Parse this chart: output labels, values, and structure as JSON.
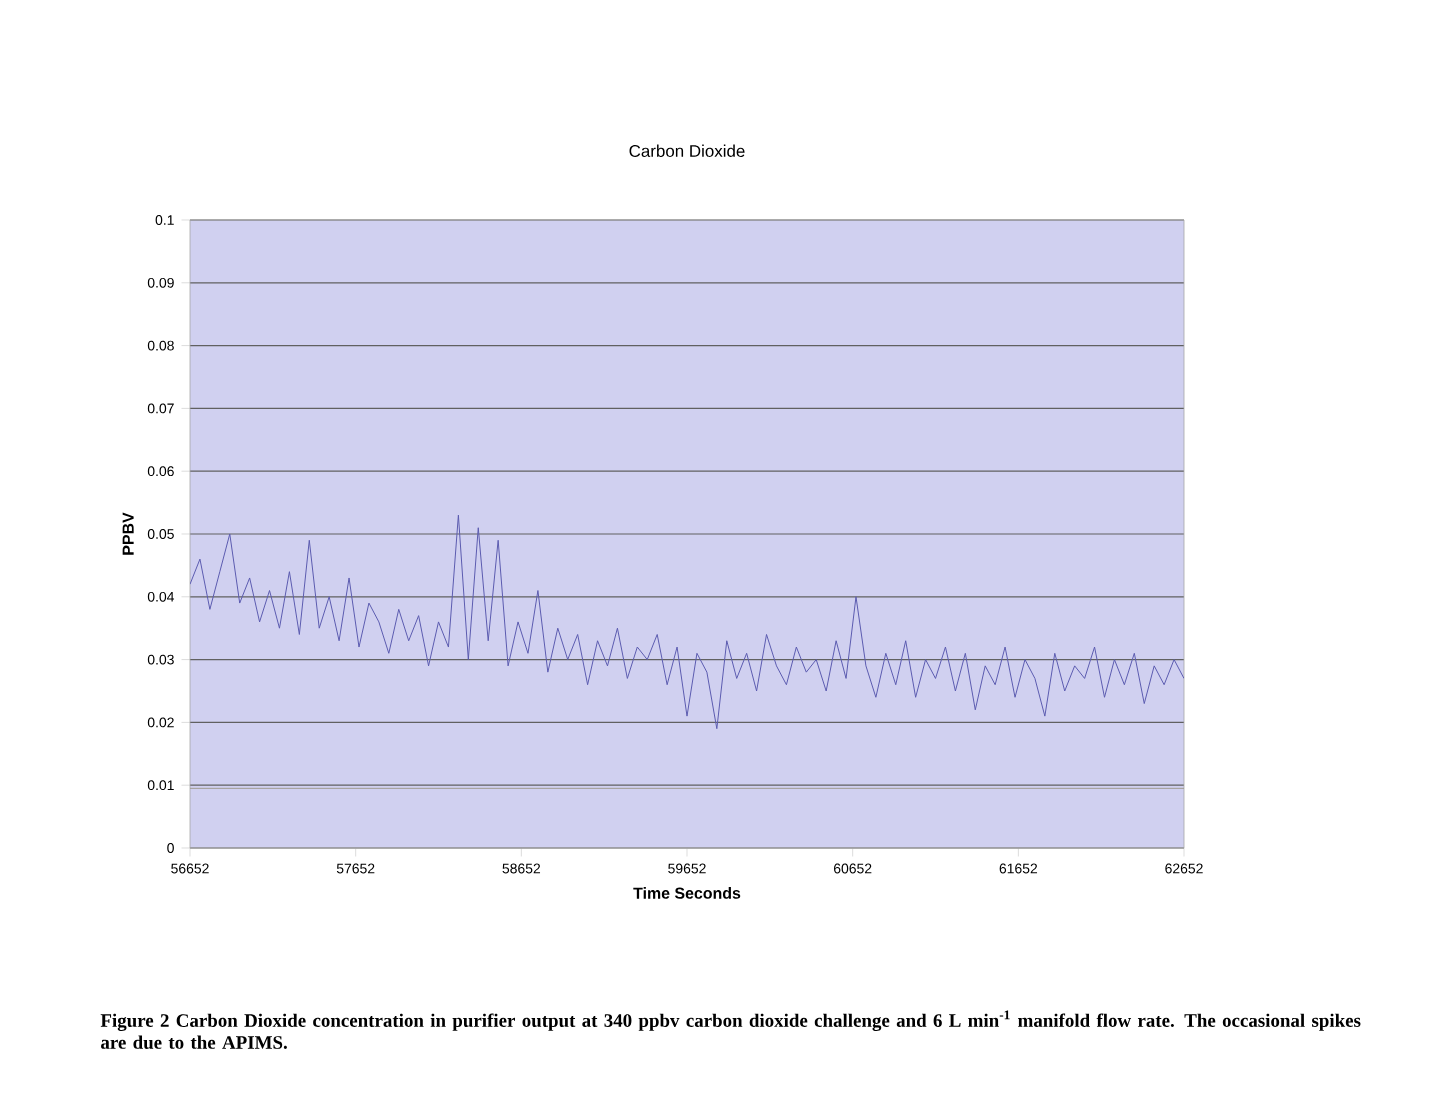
{
  "chart_data": {
    "type": "line",
    "title": "Carbon Dioxide",
    "xlabel": "Time Seconds",
    "ylabel": "PPBV",
    "annotations": [
      "Figure 2  Carbon Dioxide concentration in purifier output at 340 ppbv carbon dioxide challenge and  6 L min$^{-1}$ manifold flow rate.  The occasional spikes are due to the APIMS."
    ],
    "xlim": [
      56652,
      62652
    ],
    "xticks": [
      56652,
      57652,
      58652,
      59652,
      60652,
      61652,
      62652
    ],
    "ylim": [
      0,
      0.1
    ],
    "yticks": [
      0,
      0.01,
      0.02,
      0.03,
      0.04,
      0.05,
      0.06,
      0.07,
      0.08,
      0.09,
      0.1
    ],
    "grid": "y",
    "marker": "none",
    "line_style": "solid",
    "series": [
      {
        "color": "#5b5bb0",
        "x": [
          56652,
          56712,
          56772,
          56832,
          56892,
          56952,
          57012,
          57072,
          57132,
          57192,
          57252,
          57312,
          57372,
          57432,
          57492,
          57552,
          57612,
          57672,
          57732,
          57792,
          57852,
          57912,
          57972,
          58032,
          58092,
          58152,
          58212,
          58272,
          58332,
          58392,
          58452,
          58512,
          58572,
          58632,
          58692,
          58752,
          58812,
          58872,
          58932,
          58992,
          59052,
          59112,
          59172,
          59232,
          59292,
          59352,
          59412,
          59472,
          59532,
          59592,
          59652,
          59712,
          59772,
          59832,
          59892,
          59952,
          60012,
          60072,
          60132,
          60192,
          60252,
          60312,
          60372,
          60432,
          60492,
          60552,
          60612,
          60672,
          60732,
          60792,
          60852,
          60912,
          60972,
          61032,
          61092,
          61152,
          61212,
          61272,
          61332,
          61392,
          61452,
          61512,
          61572,
          61632,
          61692,
          61752,
          61812,
          61872,
          61932,
          61992,
          62052,
          62112,
          62172,
          62232,
          62292,
          62352,
          62412,
          62472,
          62532,
          62592,
          62652
        ],
        "values": [
          0.042,
          0.046,
          0.038,
          0.044,
          0.05,
          0.039,
          0.043,
          0.036,
          0.041,
          0.035,
          0.044,
          0.034,
          0.049,
          0.035,
          0.04,
          0.033,
          0.043,
          0.032,
          0.039,
          0.036,
          0.031,
          0.038,
          0.033,
          0.037,
          0.029,
          0.036,
          0.032,
          0.053,
          0.03,
          0.051,
          0.033,
          0.049,
          0.029,
          0.036,
          0.031,
          0.041,
          0.028,
          0.035,
          0.03,
          0.034,
          0.026,
          0.033,
          0.029,
          0.035,
          0.027,
          0.032,
          0.03,
          0.034,
          0.026,
          0.032,
          0.021,
          0.031,
          0.028,
          0.019,
          0.033,
          0.027,
          0.031,
          0.025,
          0.034,
          0.029,
          0.026,
          0.032,
          0.028,
          0.03,
          0.025,
          0.033,
          0.027,
          0.04,
          0.029,
          0.024,
          0.031,
          0.026,
          0.033,
          0.024,
          0.03,
          0.027,
          0.032,
          0.025,
          0.031,
          0.022,
          0.029,
          0.026,
          0.032,
          0.024,
          0.03,
          0.027,
          0.021,
          0.031,
          0.025,
          0.029,
          0.027,
          0.032,
          0.024,
          0.03,
          0.026,
          0.031,
          0.023,
          0.029,
          0.026,
          0.03,
          0.027
        ]
      },
      {
        "color": "#a09c90",
        "x": [
          56652,
          62652
        ],
        "values": [
          0.0095,
          0.0095
        ]
      }
    ]
  }
}
